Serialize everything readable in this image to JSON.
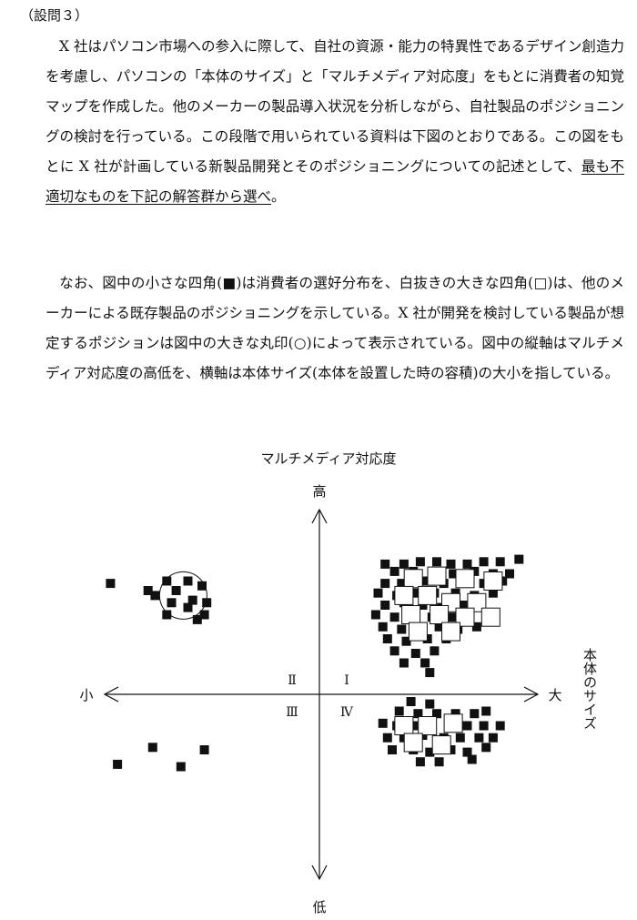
{
  "question_label": "（設問３）",
  "paragraph1": {
    "before_underline": "X 社はパソコン市場への参入に際して、自社の資源・能力の特異性であるデザイン創造力を考慮し、パソコンの「本体のサイズ」と「マルチメディア対応度」をもとに消費者の知覚マップを作成した。他のメーカーの製品導入状況を分析しながら、自社製品のポジショニングの検討を行っている。この段階で用いられている資料は下図のとおりである。この図をもとに X 社が計画している新製品開発とそのポジショニングについての記述として、",
    "underlined": "最も不適切なものを下記の解答群から選べ",
    "after_underline": "。"
  },
  "paragraph2": "なお、図中の小さな四角(■)は消費者の選好分布を、白抜きの大きな四角(□)は、他のメーカーによる既存製品のポジショニングを示している。X 社が開発を検討している製品が想定するポジションは図中の大きな丸印(○)によって表示されている。図中の縦軸はマルチメディア対応度の高低を、横軸は本体サイズ(本体を設置した時の容積)の大小を指している。",
  "figure": {
    "vertical_axis_title": "マルチメディア対応度",
    "vertical_high": "高",
    "vertical_low": "低",
    "horizontal_small": "小",
    "horizontal_large": "大",
    "horizontal_axis_title": "本体のサイズ",
    "quadrants": [
      "Ⅰ",
      "Ⅱ",
      "Ⅲ",
      "Ⅳ"
    ],
    "consumer_preferences_small_squares": [
      [
        -8.9,
        4.6
      ],
      [
        -7.3,
        4.3
      ],
      [
        -6.5,
        4.7
      ],
      [
        -6.1,
        4.3
      ],
      [
        -5.6,
        4.7
      ],
      [
        -5.0,
        4.5
      ],
      [
        -7.0,
        4.1
      ],
      [
        -6.3,
        3.8
      ],
      [
        -5.4,
        3.9
      ],
      [
        -4.8,
        3.8
      ],
      [
        -5.6,
        3.6
      ],
      [
        -4.9,
        3.3
      ],
      [
        -6.5,
        3.3
      ],
      [
        -5.2,
        3.1
      ],
      [
        2.8,
        5.4
      ],
      [
        3.6,
        5.4
      ],
      [
        4.3,
        5.5
      ],
      [
        5.0,
        5.5
      ],
      [
        5.6,
        5.4
      ],
      [
        6.3,
        5.4
      ],
      [
        7.0,
        5.5
      ],
      [
        7.7,
        5.5
      ],
      [
        8.5,
        5.6
      ],
      [
        3.2,
        5.1
      ],
      [
        4.0,
        5.1
      ],
      [
        4.8,
        5.0
      ],
      [
        5.7,
        5.0
      ],
      [
        6.6,
        5.1
      ],
      [
        7.4,
        5.0
      ],
      [
        8.1,
        5.0
      ],
      [
        2.8,
        4.6
      ],
      [
        3.5,
        4.6
      ],
      [
        4.4,
        4.7
      ],
      [
        5.3,
        4.6
      ],
      [
        6.2,
        4.6
      ],
      [
        7.0,
        4.6
      ],
      [
        7.8,
        4.7
      ],
      [
        2.5,
        4.2
      ],
      [
        3.3,
        4.1
      ],
      [
        4.1,
        4.2
      ],
      [
        4.9,
        4.2
      ],
      [
        5.8,
        4.2
      ],
      [
        6.6,
        4.1
      ],
      [
        7.4,
        4.2
      ],
      [
        2.8,
        3.7
      ],
      [
        3.6,
        3.8
      ],
      [
        4.4,
        3.7
      ],
      [
        5.2,
        3.6
      ],
      [
        6.1,
        3.7
      ],
      [
        6.9,
        3.7
      ],
      [
        2.4,
        3.3
      ],
      [
        3.2,
        3.2
      ],
      [
        4.0,
        3.3
      ],
      [
        4.8,
        3.2
      ],
      [
        5.6,
        3.2
      ],
      [
        6.4,
        3.2
      ],
      [
        7.2,
        3.3
      ],
      [
        2.7,
        2.8
      ],
      [
        3.5,
        2.7
      ],
      [
        4.3,
        2.8
      ],
      [
        5.1,
        2.8
      ],
      [
        5.9,
        2.7
      ],
      [
        6.7,
        2.8
      ],
      [
        2.9,
        2.3
      ],
      [
        3.7,
        2.2
      ],
      [
        4.6,
        2.3
      ],
      [
        5.4,
        2.3
      ],
      [
        3.2,
        1.8
      ],
      [
        4.1,
        1.7
      ],
      [
        4.9,
        1.8
      ],
      [
        3.6,
        1.3
      ],
      [
        4.5,
        1.3
      ],
      [
        4.7,
        0.9
      ],
      [
        3.9,
        -0.3
      ],
      [
        4.7,
        -0.4
      ],
      [
        3.4,
        -0.7
      ],
      [
        4.2,
        -0.8
      ],
      [
        5.0,
        -0.8
      ],
      [
        5.8,
        -0.8
      ],
      [
        6.6,
        -0.8
      ],
      [
        7.1,
        -0.7
      ],
      [
        2.7,
        -1.2
      ],
      [
        3.3,
        -1.3
      ],
      [
        4.0,
        -1.3
      ],
      [
        4.8,
        -1.2
      ],
      [
        5.5,
        -1.3
      ],
      [
        6.3,
        -1.3
      ],
      [
        7.0,
        -1.3
      ],
      [
        7.7,
        -1.3
      ],
      [
        2.9,
        -1.8
      ],
      [
        3.6,
        -1.8
      ],
      [
        4.4,
        -1.7
      ],
      [
        5.3,
        -1.8
      ],
      [
        6.0,
        -1.8
      ],
      [
        6.8,
        -1.8
      ],
      [
        7.4,
        -1.8
      ],
      [
        3.1,
        -2.3
      ],
      [
        4.0,
        -2.3
      ],
      [
        4.7,
        -2.4
      ],
      [
        5.6,
        -2.3
      ],
      [
        6.3,
        -2.4
      ],
      [
        7.1,
        -2.2
      ],
      [
        4.3,
        -2.8
      ],
      [
        5.1,
        -2.8
      ],
      [
        6.5,
        -2.7
      ],
      [
        -8.6,
        -2.9
      ],
      [
        -7.1,
        -2.2
      ],
      [
        -5.9,
        -3.0
      ],
      [
        -4.9,
        -2.3
      ]
    ],
    "existing_products_large_squares": [
      [
        4.0,
        4.8
      ],
      [
        5.0,
        4.9
      ],
      [
        6.2,
        4.8
      ],
      [
        7.4,
        4.7
      ],
      [
        3.6,
        4.1
      ],
      [
        4.6,
        4.1
      ],
      [
        5.6,
        3.8
      ],
      [
        6.7,
        3.8
      ],
      [
        3.9,
        3.3
      ],
      [
        5.1,
        3.3
      ],
      [
        6.2,
        3.2
      ],
      [
        7.3,
        3.2
      ],
      [
        4.2,
        2.6
      ],
      [
        5.6,
        2.6
      ],
      [
        3.6,
        -1.3
      ],
      [
        4.6,
        -1.3
      ],
      [
        5.7,
        -1.2
      ],
      [
        4.0,
        -2.0
      ],
      [
        5.2,
        -2.1
      ]
    ],
    "planned_product_circle": [
      -5.8,
      4.1
    ]
  }
}
